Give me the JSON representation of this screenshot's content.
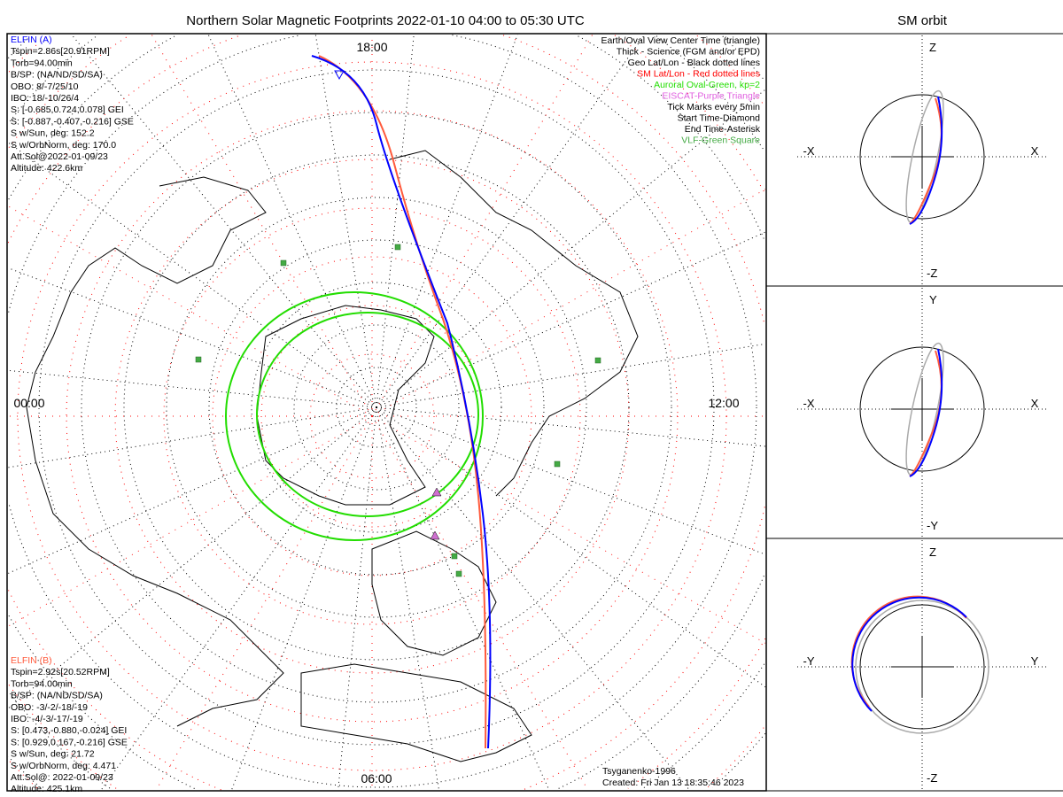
{
  "title": "Northern Solar Magnetic Footprints 2022-01-10 04:00 to 05:30 UTC",
  "side_title": "SM orbit",
  "time_labels": {
    "top": "18:00",
    "bottom": "06:00",
    "left": "00:00",
    "right": "12:00"
  },
  "elfin_a": {
    "name": "ELFIN (A)",
    "color": "#0000ff",
    "lines": [
      "Tspin=2.86s[20.91RPM]",
      "Torb=94.00min",
      "B/SP: (NA/ND/SD/SA)",
      "OBO: 8/-7/25/10",
      "IBO: 18/-10/26/4",
      "S: [-0.685,0.724,0.078] GEI",
      "S: [-0.887,-0.407,-0.216] GSE",
      "S w/Sun, deg: 152.2",
      "S w/OrbNorm, deg: 170.0",
      "Att.Sol@2022-01-09/23",
      "Altitude: 422.6km"
    ]
  },
  "elfin_b": {
    "name": "ELFIN (B)",
    "color": "#ff5a3c",
    "lines": [
      "Tspin=2.92s[20.52RPM]",
      "Torb=94.00min",
      "B/SP: (NA/ND/SD/SA)",
      "OBO: -3/-2/-18/-19",
      "IBO: -4/-3/-17/-19",
      "S: [0.473,-0.880,-0.024] GEI",
      "S: [0.929,0.167,-0.216] GSE",
      "S w/Sun, deg: 21.72",
      "S w/OrbNorm, deg: 4.471",
      "Att.Sol@: 2022-01-09/23",
      "Altitude: 425.1km"
    ]
  },
  "legend": [
    {
      "text": "Earth/Oval View Center Time (triangle)",
      "color": "#000000"
    },
    {
      "text": "Thick - Science (FGM and/or EPD)",
      "color": "#000000"
    },
    {
      "text": "Geo Lat/Lon - Black dotted lines",
      "color": "#000000"
    },
    {
      "text": "SM Lat/Lon - Red dotted lines",
      "color": "#ff0000"
    },
    {
      "text": "Auroral Oval-Green, kp=2",
      "color": "#22dd00"
    },
    {
      "text": "EISCAT-Purple Triangle",
      "color": "#e060e0"
    },
    {
      "text": "Tick Marks every 5min",
      "color": "#000000"
    },
    {
      "text": "Start Time-Diamond",
      "color": "#000000"
    },
    {
      "text": "End Time-Asterisk",
      "color": "#000000"
    },
    {
      "text": "VLF-Green Square",
      "color": "#44aa44"
    }
  ],
  "footer": {
    "model": "Tsyganenko-1996",
    "created": "Created: Fri Jan 13 18:35:46 2023"
  },
  "panels": [
    {
      "top": "Z",
      "bottom": "-Z",
      "left": "-X",
      "right": "X"
    },
    {
      "top": "Y",
      "bottom": "-Y",
      "left": "-X",
      "right": "X"
    },
    {
      "top": "Z",
      "bottom": "-Z",
      "left": "-Y",
      "right": "Y"
    }
  ]
}
